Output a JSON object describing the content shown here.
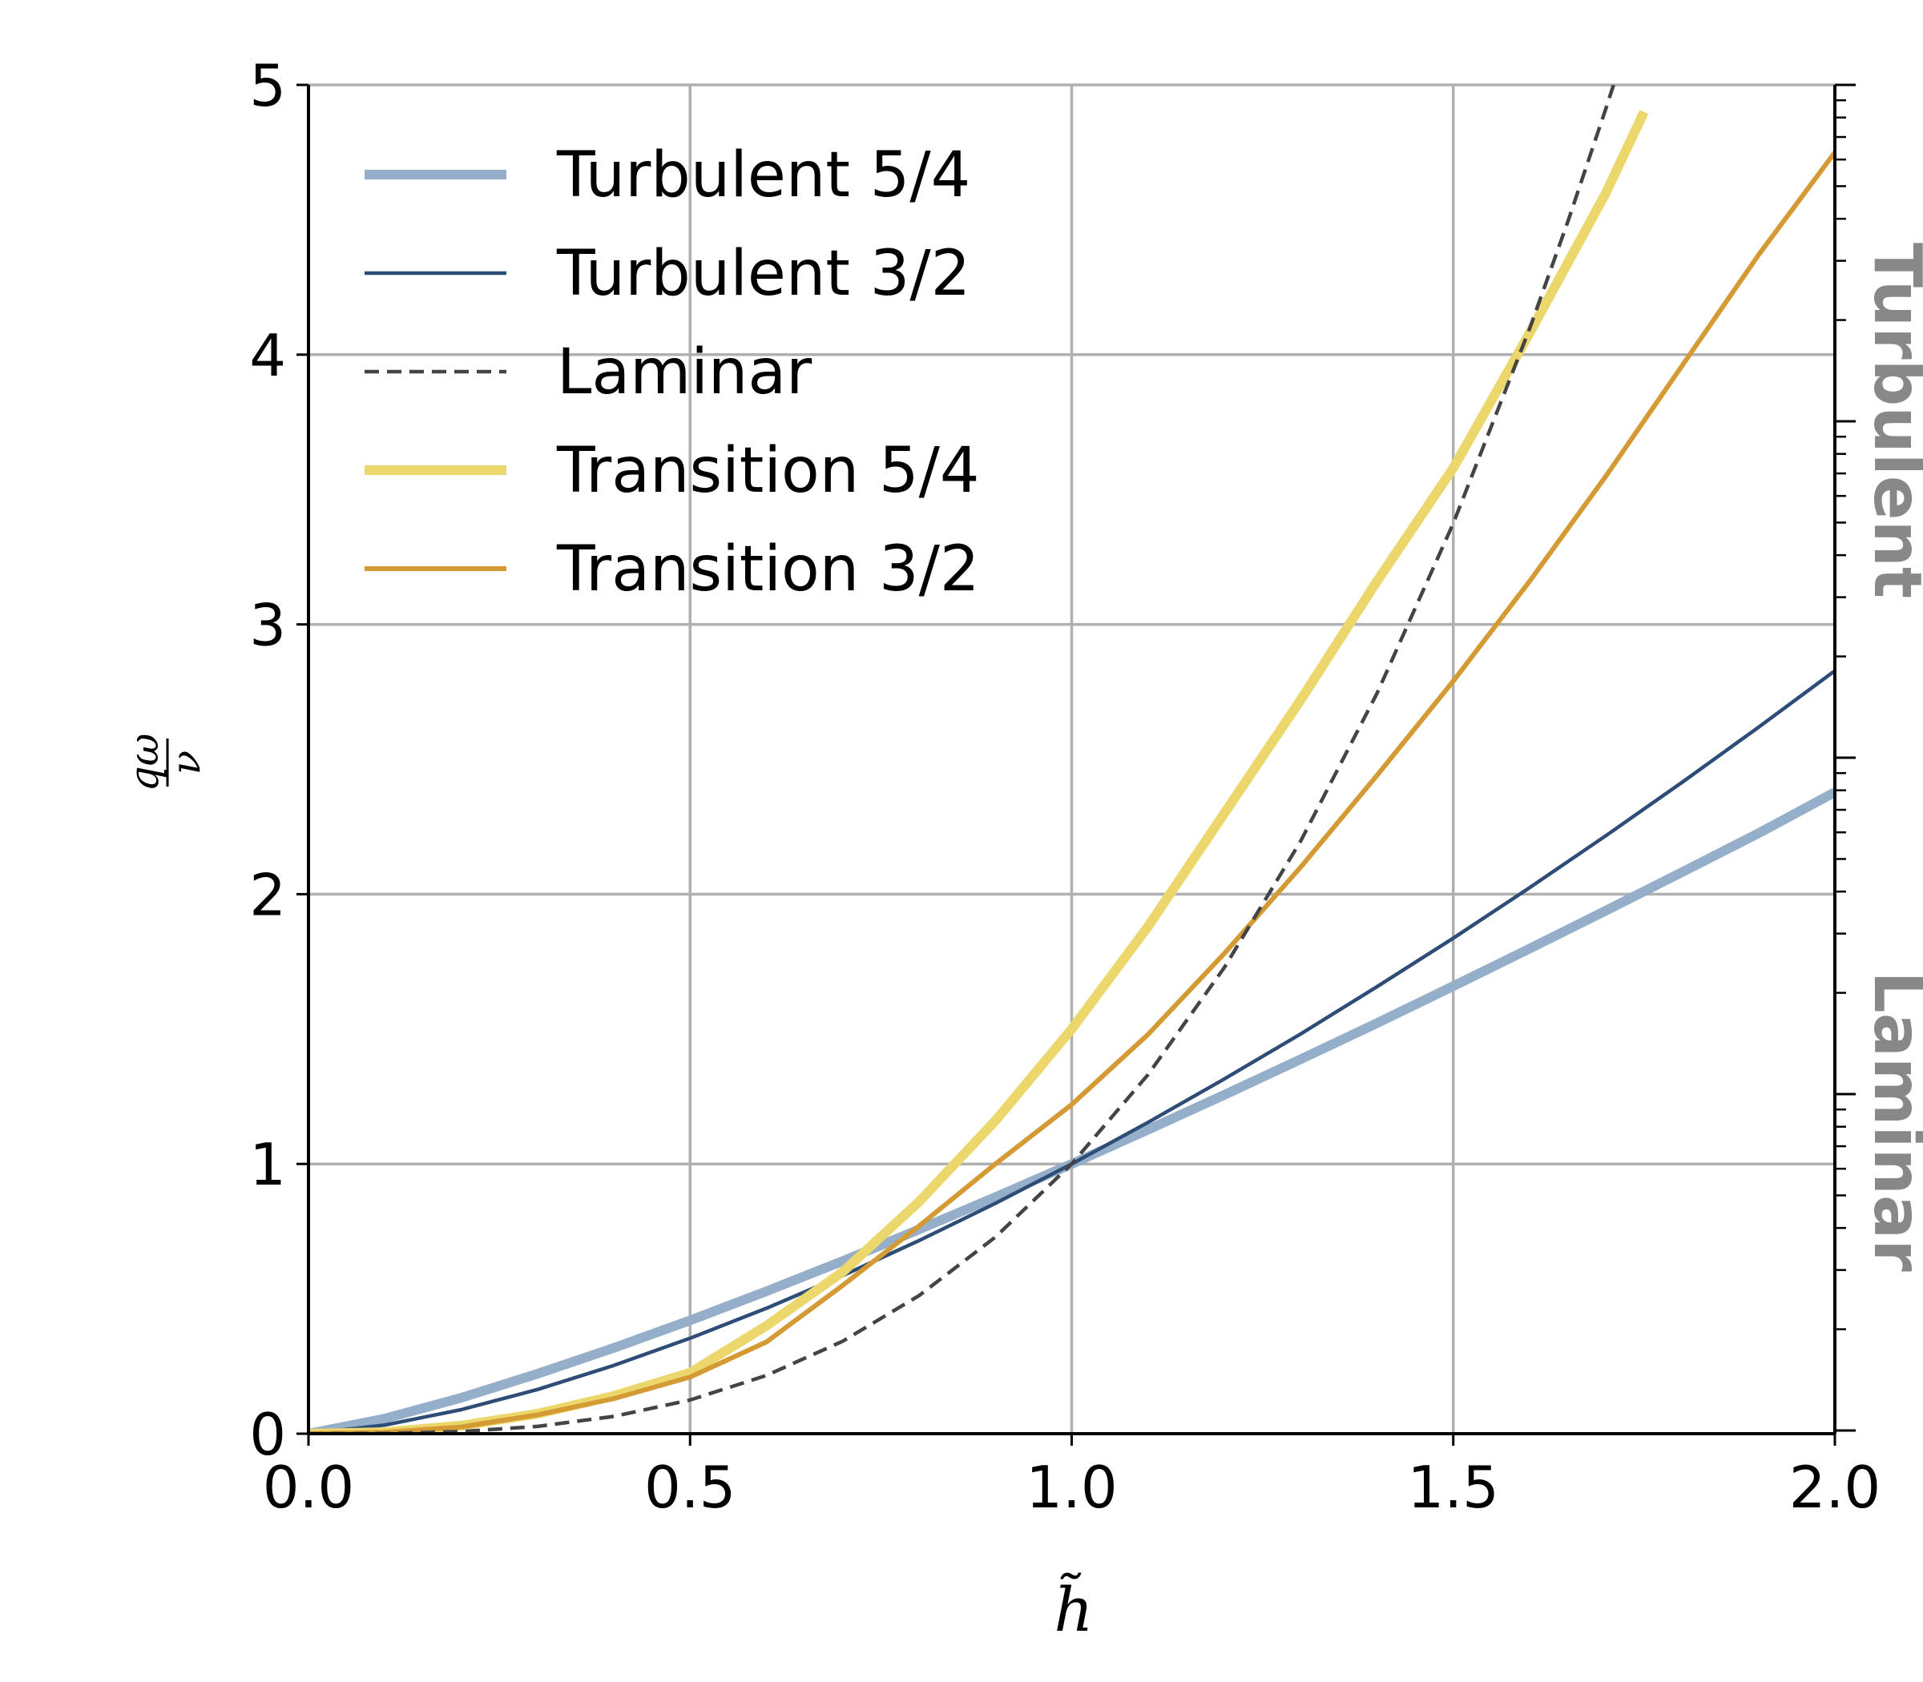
{
  "chart_data": {
    "type": "line",
    "xlabel": "h̃",
    "ylabel": {
      "numerator": "qω",
      "denominator": "ν"
    },
    "xlim": [
      0.0,
      2.0
    ],
    "ylim": [
      0,
      5
    ],
    "x_ticks": [
      "0.0",
      "0.5",
      "1.0",
      "1.5",
      "2.0"
    ],
    "y_ticks": [
      "0",
      "1",
      "2",
      "3",
      "4",
      "5"
    ],
    "grid": true,
    "legend_position": "upper-left",
    "right_axis": {
      "scale": "log",
      "labels": [
        "Turbulent",
        "Laminar"
      ],
      "label_color": "#888888"
    },
    "series": [
      {
        "name": "Turbulent 5/4",
        "color": "#95aec9",
        "style": "solid",
        "weight": "thick",
        "x": [
          0.0,
          0.1,
          0.2,
          0.3,
          0.4,
          0.5,
          0.6,
          0.7,
          0.8,
          0.9,
          1.0,
          1.1,
          1.2,
          1.3,
          1.4,
          1.5,
          1.6,
          1.7,
          1.8,
          1.9,
          2.0
        ],
        "y": [
          0.0,
          0.056,
          0.133,
          0.222,
          0.318,
          0.42,
          0.528,
          0.64,
          0.757,
          0.877,
          1.0,
          1.127,
          1.256,
          1.388,
          1.522,
          1.659,
          1.798,
          1.939,
          2.082,
          2.226,
          2.378
        ]
      },
      {
        "name": "Turbulent 3/2",
        "color": "#2e4d76",
        "style": "solid",
        "weight": "thin",
        "x": [
          0.0,
          0.1,
          0.2,
          0.3,
          0.4,
          0.5,
          0.6,
          0.7,
          0.8,
          0.9,
          1.0,
          1.1,
          1.2,
          1.3,
          1.4,
          1.5,
          1.6,
          1.7,
          1.8,
          1.9,
          2.0
        ],
        "y": [
          0.0,
          0.032,
          0.089,
          0.164,
          0.253,
          0.354,
          0.465,
          0.586,
          0.716,
          0.854,
          1.0,
          1.154,
          1.315,
          1.482,
          1.657,
          1.837,
          2.024,
          2.217,
          2.415,
          2.619,
          2.828
        ]
      },
      {
        "name": "Laminar",
        "color": "#444444",
        "style": "dashed",
        "weight": "thin",
        "x": [
          0.0,
          0.1,
          0.2,
          0.3,
          0.4,
          0.5,
          0.6,
          0.7,
          0.8,
          0.9,
          1.0,
          1.1,
          1.2,
          1.3,
          1.4,
          1.5,
          1.6,
          1.65,
          1.7,
          1.71
        ],
        "y": [
          0.0,
          0.001,
          0.008,
          0.027,
          0.064,
          0.125,
          0.216,
          0.343,
          0.512,
          0.729,
          1.0,
          1.331,
          1.728,
          2.197,
          2.744,
          3.375,
          4.096,
          4.492,
          4.913,
          5.0
        ]
      },
      {
        "name": "Transition 5/4",
        "color": "#ecd76c",
        "style": "solid",
        "weight": "thick",
        "x": [
          0.0,
          0.1,
          0.2,
          0.3,
          0.4,
          0.5,
          0.6,
          0.7,
          0.8,
          0.9,
          1.0,
          1.1,
          1.2,
          1.3,
          1.4,
          1.5,
          1.6,
          1.7,
          1.75
        ],
        "y": [
          0.0,
          0.006,
          0.03,
          0.074,
          0.14,
          0.226,
          0.4,
          0.6,
          0.86,
          1.16,
          1.5,
          1.88,
          2.3,
          2.72,
          3.16,
          3.58,
          4.08,
          4.6,
          4.9
        ]
      },
      {
        "name": "Transition 3/2",
        "color": "#d49a34",
        "style": "solid",
        "weight": "medium",
        "x": [
          0.0,
          0.1,
          0.2,
          0.3,
          0.4,
          0.5,
          0.6,
          0.7,
          0.8,
          0.9,
          1.0,
          1.1,
          1.2,
          1.3,
          1.4,
          1.5,
          1.6,
          1.7,
          1.8,
          1.9,
          2.0
        ],
        "y": [
          0.0,
          0.005,
          0.025,
          0.07,
          0.13,
          0.21,
          0.34,
          0.55,
          0.77,
          1.0,
          1.22,
          1.48,
          1.78,
          2.1,
          2.44,
          2.79,
          3.16,
          3.55,
          3.96,
          4.37,
          4.75
        ]
      }
    ]
  }
}
